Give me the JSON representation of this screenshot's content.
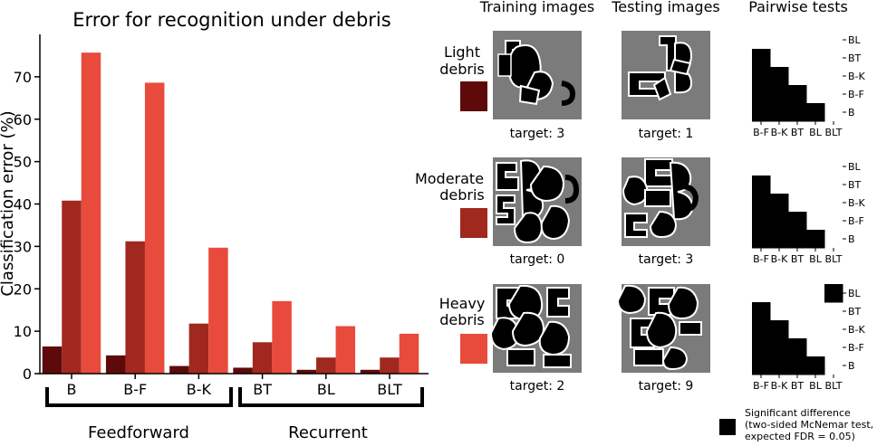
{
  "chart_data": {
    "type": "bar",
    "title": "Error for recognition under debris",
    "xlabel": "",
    "ylabel": "Classification error (%)",
    "ylim": [
      0,
      80
    ],
    "yticks": [
      0,
      10,
      20,
      30,
      40,
      50,
      60,
      70
    ],
    "categories": [
      "B",
      "B-F",
      "B-K",
      "BT",
      "BL",
      "BLT"
    ],
    "groups": [
      {
        "label": "Feedforward",
        "categories": [
          "B",
          "B-F",
          "B-K"
        ]
      },
      {
        "label": "Recurrent",
        "categories": [
          "BT",
          "BL",
          "BLT"
        ]
      }
    ],
    "series": [
      {
        "name": "Light debris",
        "color": "#5e0a0a",
        "values": [
          6.4,
          4.3,
          1.8,
          1.4,
          0.9,
          0.9
        ]
      },
      {
        "name": "Moderate debris",
        "color": "#a0281e",
        "values": [
          40.8,
          31.2,
          11.8,
          7.4,
          3.8,
          3.8
        ]
      },
      {
        "name": "Heavy debris",
        "color": "#e84a3c",
        "values": [
          75.7,
          68.6,
          29.7,
          17.1,
          11.2,
          9.4
        ]
      }
    ],
    "grid": false
  },
  "panels": {
    "col_headers": [
      "Training images",
      "Testing images",
      "Pairwise tests"
    ],
    "rows": [
      {
        "label_line1": "Light",
        "label_line2": "debris",
        "color": "#5e0a0a",
        "train_target": "target: 3",
        "test_target": "target: 1",
        "matrix": [
          [
            0,
            0,
            0,
            0,
            0
          ],
          [
            1,
            0,
            0,
            0,
            0
          ],
          [
            1,
            1,
            0,
            0,
            0
          ],
          [
            1,
            1,
            1,
            0,
            0
          ],
          [
            1,
            1,
            1,
            1,
            0
          ]
        ]
      },
      {
        "label_line1": "Moderate",
        "label_line2": "debris",
        "color": "#a0281e",
        "train_target": "target: 0",
        "test_target": "target: 3",
        "matrix": [
          [
            0,
            0,
            0,
            0,
            0
          ],
          [
            1,
            0,
            0,
            0,
            0
          ],
          [
            1,
            1,
            0,
            0,
            0
          ],
          [
            1,
            1,
            1,
            0,
            0
          ],
          [
            1,
            1,
            1,
            1,
            0
          ]
        ]
      },
      {
        "label_line1": "Heavy",
        "label_line2": "debris",
        "color": "#e84a3c",
        "train_target": "target: 2",
        "test_target": "target: 9",
        "matrix": [
          [
            0,
            0,
            0,
            0,
            1
          ],
          [
            1,
            0,
            0,
            0,
            0
          ],
          [
            1,
            1,
            0,
            0,
            0
          ],
          [
            1,
            1,
            1,
            0,
            0
          ],
          [
            1,
            1,
            1,
            1,
            0
          ]
        ]
      }
    ],
    "matrix_x_labels": [
      "B-F",
      "B-K",
      "BT",
      "BL",
      "BLT"
    ],
    "matrix_y_labels": [
      "BL",
      "BT",
      "B-K",
      "B-F",
      "B"
    ]
  },
  "legend": {
    "line1": "Significant difference",
    "line2": "(two-sided McNemar test,",
    "line3": "expected FDR = 0.05)"
  }
}
